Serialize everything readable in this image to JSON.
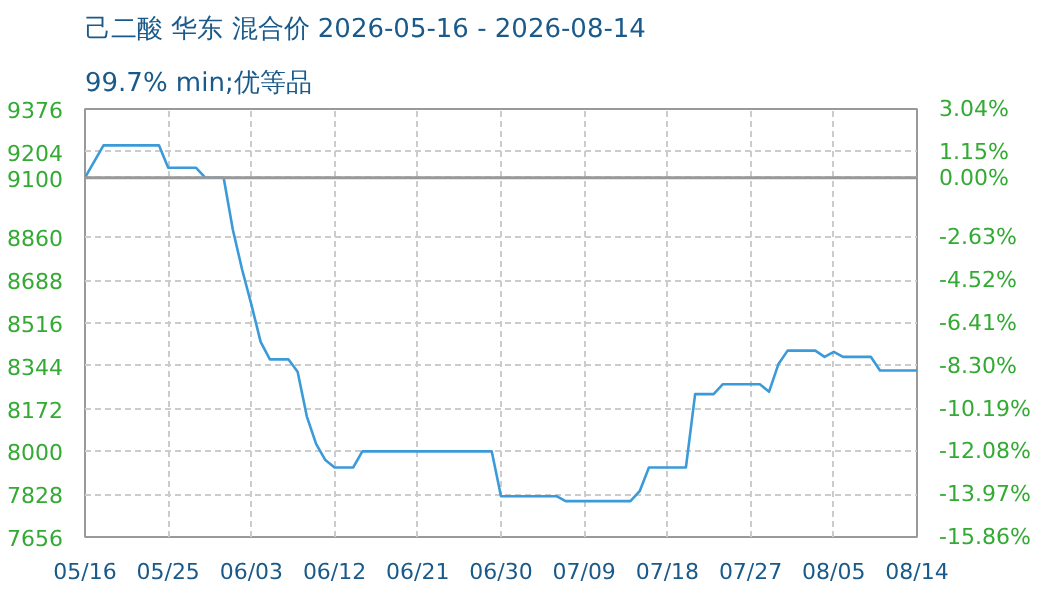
{
  "chart_data": {
    "type": "line",
    "title": "己二酸 华东 混合价 2026-05-16 - 2026-08-14",
    "subtitle": "99.7% min;优等品",
    "x": [
      "2026-05-16",
      "2026-05-18",
      "2026-05-24",
      "2026-05-25",
      "2026-05-28",
      "2026-05-29",
      "2026-05-31",
      "2026-06-01",
      "2026-06-02",
      "2026-06-03",
      "2026-06-04",
      "2026-06-05",
      "2026-06-07",
      "2026-06-08",
      "2026-06-09",
      "2026-06-10",
      "2026-06-11",
      "2026-06-12",
      "2026-06-14",
      "2026-06-15",
      "2026-06-29",
      "2026-06-30",
      "2026-07-06",
      "2026-07-07",
      "2026-07-14",
      "2026-07-15",
      "2026-07-16",
      "2026-07-20",
      "2026-07-21",
      "2026-07-23",
      "2026-07-24",
      "2026-07-28",
      "2026-07-29",
      "2026-07-30",
      "2026-07-31",
      "2026-08-03",
      "2026-08-04",
      "2026-08-05",
      "2026-08-06",
      "2026-08-09",
      "2026-08-10",
      "2026-08-14"
    ],
    "series": [
      {
        "color": "#3b9ad9",
        "values": [
          9100,
          9230,
          9230,
          9140,
          9140,
          9100,
          9100,
          8890,
          8730,
          8590,
          8440,
          8370,
          8370,
          8320,
          8140,
          8030,
          7965,
          7935,
          7935,
          8000,
          8000,
          7820,
          7820,
          7800,
          7800,
          7840,
          7935,
          7935,
          8230,
          8230,
          8270,
          8270,
          8240,
          8350,
          8405,
          8405,
          8380,
          8400,
          8380,
          8380,
          8325,
          8325
        ]
      }
    ],
    "xlim": [
      "2026-05-16",
      "2026-08-14"
    ],
    "xticks": [
      {
        "value": "2026-05-16",
        "label": "05/16"
      },
      {
        "value": "2026-05-25",
        "label": "05/25"
      },
      {
        "value": "2026-06-03",
        "label": "06/03"
      },
      {
        "value": "2026-06-12",
        "label": "06/12"
      },
      {
        "value": "2026-06-21",
        "label": "06/21"
      },
      {
        "value": "2026-06-30",
        "label": "06/30"
      },
      {
        "value": "2026-07-09",
        "label": "07/09"
      },
      {
        "value": "2026-07-18",
        "label": "07/18"
      },
      {
        "value": "2026-07-27",
        "label": "07/27"
      },
      {
        "value": "2026-08-05",
        "label": "08/05"
      },
      {
        "value": "2026-08-14",
        "label": "08/14"
      }
    ],
    "ylim": [
      7656,
      9376
    ],
    "yticks": [
      7656,
      7828,
      8000,
      8172,
      8344,
      8516,
      8688,
      8860,
      9100,
      9204,
      9376
    ],
    "y2lim": [
      -15.86,
      3.04
    ],
    "y2ticks": [
      {
        "value": -15.86,
        "label": "-15.86%"
      },
      {
        "value": -13.97,
        "label": "-13.97%"
      },
      {
        "value": -12.08,
        "label": "-12.08%"
      },
      {
        "value": -10.19,
        "label": "-10.19%"
      },
      {
        "value": -8.3,
        "label": "-8.30%"
      },
      {
        "value": -6.41,
        "label": "-6.41%"
      },
      {
        "value": -4.52,
        "label": "-4.52%"
      },
      {
        "value": -2.63,
        "label": "-2.63%"
      },
      {
        "value": 0,
        "label": "0.00%"
      },
      {
        "value": 1.15,
        "label": "1.15%"
      },
      {
        "value": 3.04,
        "label": "3.04%"
      }
    ],
    "ref_lines": [
      {
        "axis": "y",
        "value": 9100,
        "color": "#999999",
        "line_style": "solid"
      }
    ],
    "grid": true,
    "marker": "none",
    "line_style": "solid"
  }
}
